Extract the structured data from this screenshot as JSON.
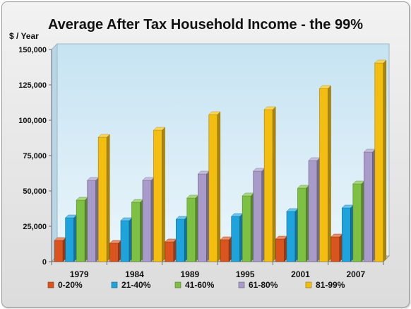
{
  "chart_data": {
    "type": "bar",
    "title": "Average After Tax Household Income - the 99%",
    "ylabel": "$ / Year",
    "xlabel": "",
    "ylim": [
      0,
      150000
    ],
    "yticks": [
      0,
      25000,
      50000,
      75000,
      100000,
      125000,
      150000
    ],
    "ytick_labels": [
      "0",
      "25,000",
      "50,000",
      "75,000",
      "100,000",
      "125,000",
      "150,000"
    ],
    "categories": [
      "1979",
      "1984",
      "1989",
      "1995",
      "2001",
      "2007"
    ],
    "series": [
      {
        "name": "0-20%",
        "color": "#d9541e",
        "values": [
          15000,
          13000,
          14000,
          15500,
          16000,
          17500
        ]
      },
      {
        "name": "21-40%",
        "color": "#1fa3dd",
        "values": [
          31000,
          29000,
          30000,
          32000,
          35500,
          38000
        ]
      },
      {
        "name": "41-60%",
        "color": "#7ec142",
        "values": [
          43500,
          42000,
          45000,
          46500,
          52000,
          55000
        ]
      },
      {
        "name": "61-80%",
        "color": "#a89ac9",
        "values": [
          57500,
          57500,
          62000,
          64000,
          71500,
          77500
        ]
      },
      {
        "name": "81-99%",
        "color": "#f3be10",
        "values": [
          88000,
          93000,
          104000,
          107500,
          122500,
          140500
        ]
      }
    ],
    "grid": false,
    "legend_position": "bottom"
  }
}
